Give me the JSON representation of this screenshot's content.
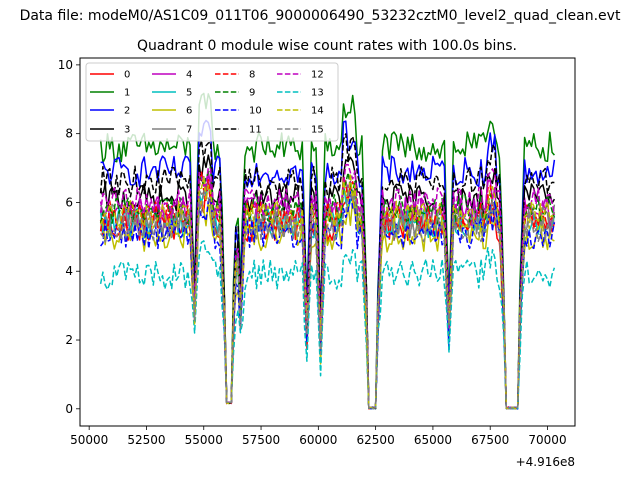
{
  "figure": {
    "suptitle": "Data file: modeM0/AS1C09_011T06_9000006490_53232cztM0_level2_quad_clean.evt"
  },
  "chart_data": {
    "type": "line",
    "title": "Quadrant 0 module wise count rates with 100.0s bins.",
    "xlabel": "",
    "ylabel": "",
    "x_offset_label": "+4.916e8",
    "x_offset": 491600000,
    "xlim": [
      49600,
      71200
    ],
    "ylim": [
      -0.5,
      10.2
    ],
    "x_ticks": [
      50000,
      52500,
      55000,
      57500,
      60000,
      62500,
      65000,
      67500,
      70000
    ],
    "x_tick_labels": [
      "50000",
      "52500",
      "55000",
      "57500",
      "60000",
      "62500",
      "65000",
      "67500",
      "70000"
    ],
    "y_ticks": [
      0,
      2,
      4,
      6,
      8,
      10
    ],
    "y_tick_labels": [
      "0",
      "2",
      "4",
      "6",
      "8",
      "10"
    ],
    "grid": false,
    "legend": {
      "placement": "upper-left",
      "columns": 4
    },
    "x_range": [
      50500,
      70300
    ],
    "bin_seconds": 100,
    "gaps": [
      {
        "start": 56000,
        "end": 56200,
        "value": 0.15
      },
      {
        "start": 62200,
        "end": 62500,
        "value": 0.0
      },
      {
        "start": 68200,
        "end": 68700,
        "value": 0.0
      }
    ],
    "dips": [
      {
        "center": 54600,
        "depth": 0.55
      },
      {
        "center": 56600,
        "depth": 0.5
      },
      {
        "center": 59500,
        "depth": 0.6
      },
      {
        "center": 60100,
        "depth": 0.65
      },
      {
        "center": 65700,
        "depth": 0.6
      }
    ],
    "series": [
      {
        "name": "0",
        "color": "#ff0000",
        "dash": "solid",
        "level": 5.3
      },
      {
        "name": "1",
        "color": "#008000",
        "dash": "solid",
        "level": 7.6
      },
      {
        "name": "2",
        "color": "#0000ff",
        "dash": "solid",
        "level": 6.9
      },
      {
        "name": "3",
        "color": "#000000",
        "dash": "solid",
        "level": 6.1
      },
      {
        "name": "4",
        "color": "#bf00bf",
        "dash": "solid",
        "level": 5.7
      },
      {
        "name": "5",
        "color": "#00bfbf",
        "dash": "solid",
        "level": 5.4
      },
      {
        "name": "6",
        "color": "#bfbf00",
        "dash": "solid",
        "level": 5.0
      },
      {
        "name": "7",
        "color": "#808080",
        "dash": "solid",
        "level": 5.5
      },
      {
        "name": "8",
        "color": "#ff0000",
        "dash": "dashed",
        "level": 5.6
      },
      {
        "name": "9",
        "color": "#008000",
        "dash": "dashed",
        "level": 5.8
      },
      {
        "name": "10",
        "color": "#0000ff",
        "dash": "dashed",
        "level": 5.1
      },
      {
        "name": "11",
        "color": "#000000",
        "dash": "dashed",
        "level": 6.6
      },
      {
        "name": "12",
        "color": "#bf00bf",
        "dash": "dashed",
        "level": 6.0
      },
      {
        "name": "13",
        "color": "#00bfbf",
        "dash": "dashed",
        "level": 3.9
      },
      {
        "name": "14",
        "color": "#bfbf00",
        "dash": "dashed",
        "level": 5.6
      },
      {
        "name": "15",
        "color": "#808080",
        "dash": "dashed",
        "level": 5.3
      }
    ]
  }
}
